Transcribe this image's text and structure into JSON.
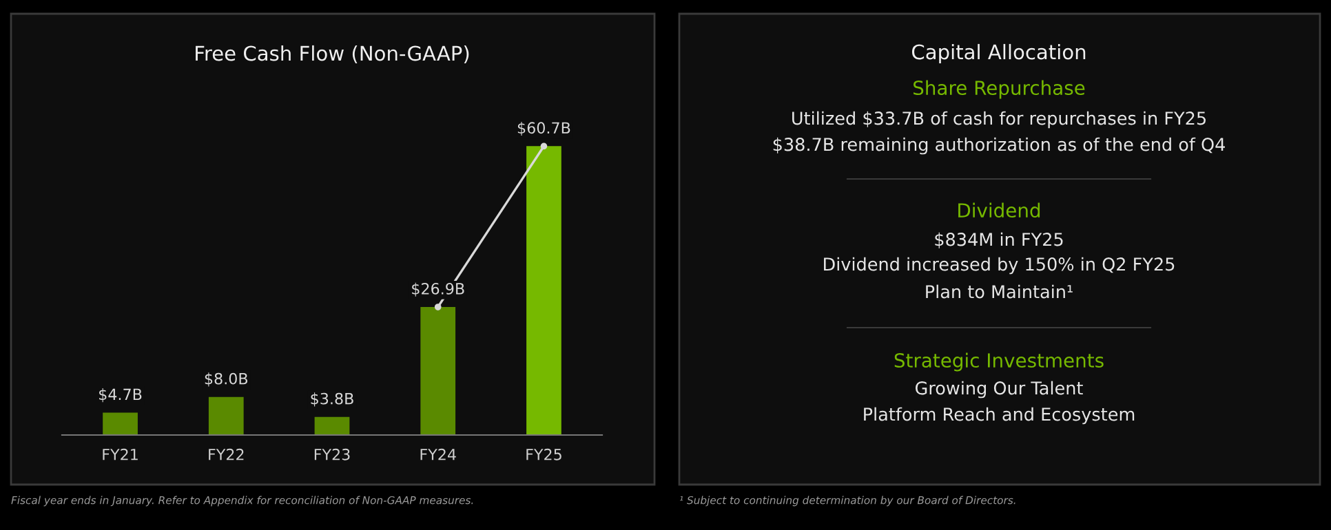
{
  "chart_data": [
    {
      "type": "bar",
      "title": "Free Cash Flow (Non-GAAP)",
      "categories": [
        "FY21",
        "FY22",
        "FY23",
        "FY24",
        "FY25"
      ],
      "series": [
        {
          "type": "bar",
          "colors": [
            "#5a8a00",
            "#5a8a00",
            "#5a8a00",
            "#5a8a00",
            "#76b900"
          ],
          "values": [
            4.7,
            8.0,
            3.8,
            26.9,
            60.7
          ],
          "value_labels": [
            "$4.7B",
            "$8.0B",
            "$3.8B",
            "$26.9B",
            "$60.7B"
          ]
        },
        {
          "type": "line",
          "color": "#d9d9d9",
          "marker": "circle",
          "values": [
            null,
            null,
            null,
            26.9,
            60.7
          ]
        }
      ],
      "annotations": [
        "Fiscal year ends in January. Refer to Appendix for reconciliation of Non-GAAP measures."
      ],
      "grid": false,
      "legend": false,
      "tick_labels": "x"
    },
    {
      "type": "other",
      "title": "Capital Allocation",
      "annotations": [
        "Share Repurchase",
        "Utilized $33.7B of cash for repurchases in FY25",
        "$38.7B remaining authorization as of the end of Q4",
        "Dividend",
        "$834M in FY25",
        "Dividend increased by 150% in Q2 FY25",
        "Plan to Maintain¹",
        "Strategic Investments",
        "Growing Our Talent",
        "Platform Reach and Ecosystem",
        "¹ Subject to continuing determination by our Board of Directors."
      ],
      "colors": [
        "#76b900",
        "#e6e6e6",
        "#e6e6e6",
        "#76b900",
        "#e6e6e6",
        "#e6e6e6",
        "#e6e6e6",
        "#76b900",
        "#e6e6e6",
        "#e6e6e6",
        "#9a9a9a"
      ]
    }
  ]
}
